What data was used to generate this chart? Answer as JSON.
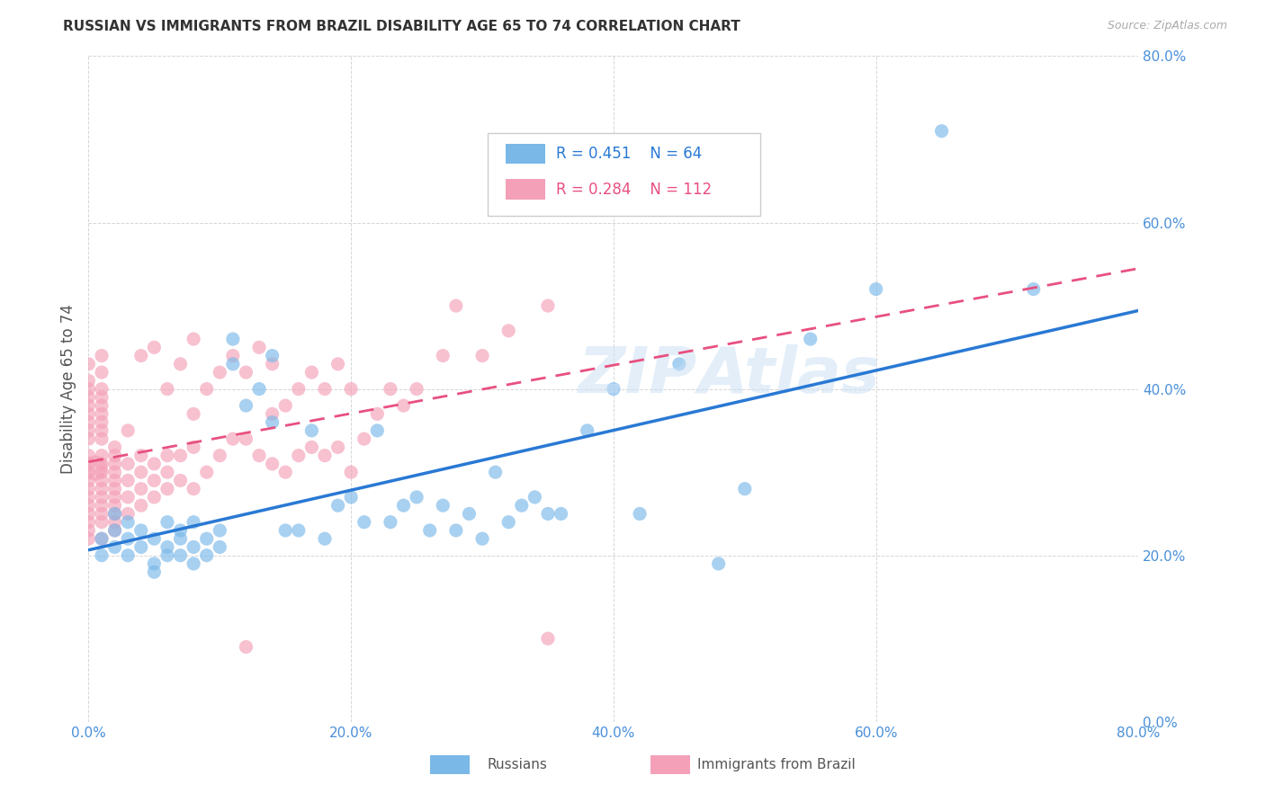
{
  "title": "RUSSIAN VS IMMIGRANTS FROM BRAZIL DISABILITY AGE 65 TO 74 CORRELATION CHART",
  "source": "Source: ZipAtlas.com",
  "ylabel": "Disability Age 65 to 74",
  "xlim": [
    0.0,
    0.8
  ],
  "ylim": [
    0.0,
    0.8
  ],
  "watermark": "ZIPAtlas",
  "legend_r1": "R = 0.451",
  "legend_n1": "N = 64",
  "legend_r2": "R = 0.284",
  "legend_n2": "N = 112",
  "color_russian": "#7ab8e8",
  "color_brazil": "#f4a0b8",
  "color_line_russian": "#2979d4",
  "color_line_brazil": "#e85080",
  "background_color": "#ffffff",
  "grid_color": "#cccccc",
  "russian_x": [
    0.01,
    0.01,
    0.02,
    0.02,
    0.02,
    0.03,
    0.03,
    0.03,
    0.04,
    0.04,
    0.05,
    0.05,
    0.05,
    0.06,
    0.06,
    0.06,
    0.07,
    0.07,
    0.07,
    0.08,
    0.08,
    0.08,
    0.09,
    0.09,
    0.1,
    0.1,
    0.11,
    0.11,
    0.12,
    0.13,
    0.14,
    0.14,
    0.15,
    0.16,
    0.17,
    0.18,
    0.19,
    0.2,
    0.21,
    0.22,
    0.23,
    0.24,
    0.25,
    0.26,
    0.27,
    0.28,
    0.29,
    0.3,
    0.31,
    0.32,
    0.33,
    0.34,
    0.35,
    0.36,
    0.38,
    0.4,
    0.42,
    0.45,
    0.48,
    0.5,
    0.55,
    0.6,
    0.65,
    0.72
  ],
  "russian_y": [
    0.22,
    0.2,
    0.21,
    0.25,
    0.23,
    0.2,
    0.24,
    0.22,
    0.21,
    0.23,
    0.19,
    0.22,
    0.18,
    0.2,
    0.24,
    0.21,
    0.22,
    0.2,
    0.23,
    0.21,
    0.19,
    0.24,
    0.22,
    0.2,
    0.21,
    0.23,
    0.43,
    0.46,
    0.38,
    0.4,
    0.36,
    0.44,
    0.23,
    0.23,
    0.35,
    0.22,
    0.26,
    0.27,
    0.24,
    0.35,
    0.24,
    0.26,
    0.27,
    0.23,
    0.26,
    0.23,
    0.25,
    0.22,
    0.3,
    0.24,
    0.26,
    0.27,
    0.25,
    0.25,
    0.35,
    0.4,
    0.25,
    0.43,
    0.19,
    0.28,
    0.46,
    0.52,
    0.71,
    0.52
  ],
  "russian_size_large": [
    0,
    0,
    0,
    0,
    0,
    0,
    0,
    0,
    0,
    0,
    0,
    0,
    0,
    0,
    0,
    0,
    0,
    0,
    0,
    0,
    0,
    0,
    0,
    0,
    0,
    0,
    0,
    0,
    0,
    0,
    0,
    0,
    0,
    0,
    0,
    0,
    0,
    0,
    0,
    0,
    0,
    0,
    0,
    0,
    0,
    0,
    0,
    0,
    0,
    0,
    0,
    0,
    0,
    0,
    0,
    0,
    0,
    0,
    0,
    0,
    0,
    0,
    0,
    0
  ],
  "brazil_x": [
    0.0,
    0.0,
    0.0,
    0.0,
    0.0,
    0.0,
    0.0,
    0.0,
    0.0,
    0.0,
    0.0,
    0.0,
    0.0,
    0.0,
    0.0,
    0.0,
    0.0,
    0.0,
    0.0,
    0.0,
    0.01,
    0.01,
    0.01,
    0.01,
    0.01,
    0.01,
    0.01,
    0.01,
    0.01,
    0.01,
    0.01,
    0.01,
    0.01,
    0.01,
    0.01,
    0.01,
    0.01,
    0.01,
    0.01,
    0.02,
    0.02,
    0.02,
    0.02,
    0.02,
    0.02,
    0.02,
    0.02,
    0.02,
    0.02,
    0.02,
    0.03,
    0.03,
    0.03,
    0.03,
    0.03,
    0.04,
    0.04,
    0.04,
    0.04,
    0.04,
    0.05,
    0.05,
    0.05,
    0.05,
    0.06,
    0.06,
    0.06,
    0.06,
    0.07,
    0.07,
    0.07,
    0.08,
    0.08,
    0.08,
    0.08,
    0.09,
    0.09,
    0.1,
    0.1,
    0.11,
    0.11,
    0.12,
    0.12,
    0.13,
    0.13,
    0.14,
    0.14,
    0.14,
    0.15,
    0.15,
    0.16,
    0.16,
    0.17,
    0.17,
    0.18,
    0.18,
    0.19,
    0.19,
    0.2,
    0.2,
    0.21,
    0.22,
    0.23,
    0.24,
    0.25,
    0.27,
    0.28,
    0.3,
    0.32,
    0.35,
    0.35,
    0.12
  ],
  "brazil_y": [
    0.25,
    0.26,
    0.27,
    0.28,
    0.29,
    0.3,
    0.31,
    0.32,
    0.22,
    0.23,
    0.24,
    0.34,
    0.35,
    0.36,
    0.37,
    0.38,
    0.39,
    0.4,
    0.41,
    0.43,
    0.22,
    0.24,
    0.25,
    0.26,
    0.27,
    0.28,
    0.29,
    0.3,
    0.31,
    0.32,
    0.34,
    0.35,
    0.36,
    0.37,
    0.38,
    0.39,
    0.4,
    0.42,
    0.44,
    0.23,
    0.24,
    0.25,
    0.26,
    0.27,
    0.28,
    0.29,
    0.3,
    0.31,
    0.32,
    0.33,
    0.25,
    0.27,
    0.29,
    0.31,
    0.35,
    0.26,
    0.28,
    0.3,
    0.32,
    0.44,
    0.27,
    0.29,
    0.31,
    0.45,
    0.28,
    0.3,
    0.32,
    0.4,
    0.29,
    0.32,
    0.43,
    0.28,
    0.33,
    0.37,
    0.46,
    0.3,
    0.4,
    0.32,
    0.42,
    0.34,
    0.44,
    0.34,
    0.42,
    0.32,
    0.45,
    0.31,
    0.37,
    0.43,
    0.3,
    0.38,
    0.32,
    0.4,
    0.33,
    0.42,
    0.32,
    0.4,
    0.33,
    0.43,
    0.3,
    0.4,
    0.34,
    0.37,
    0.4,
    0.38,
    0.4,
    0.44,
    0.5,
    0.44,
    0.47,
    0.5,
    0.1,
    0.09
  ],
  "brazil_large_x": [
    0.005
  ],
  "brazil_large_y": [
    0.305
  ],
  "brazil_large_size": [
    400
  ]
}
